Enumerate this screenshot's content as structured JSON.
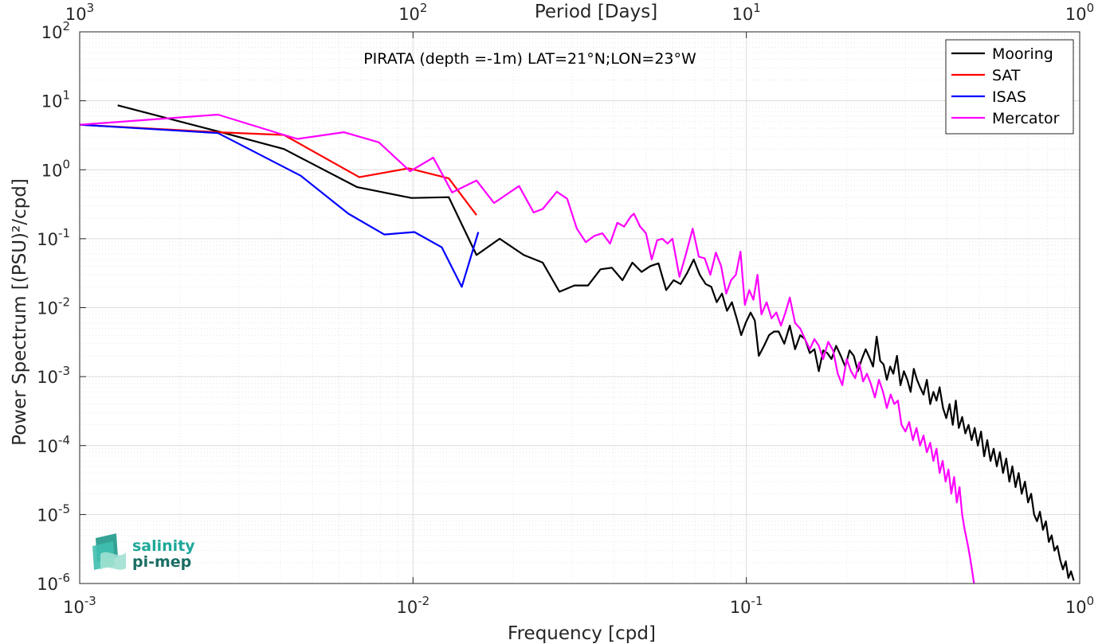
{
  "chart_data": {
    "type": "line",
    "title": "PIRATA (depth =-1m) LAT=21°N;LON=23°W",
    "xlabel": "Frequency [cpd]",
    "ylabel": "Power Spectrum [(PSU)²/cpd]",
    "x2label": "Period [Days]",
    "xscale": "log",
    "yscale": "log",
    "xlim": [
      0.001,
      1
    ],
    "ylim": [
      1e-06,
      100
    ],
    "grid": true,
    "legend_position": "top-right",
    "x_ticks": [
      {
        "value": 0.001,
        "base": "10",
        "exp": "-3"
      },
      {
        "value": 0.01,
        "base": "10",
        "exp": "-2"
      },
      {
        "value": 0.1,
        "base": "10",
        "exp": "-1"
      },
      {
        "value": 1,
        "base": "10",
        "exp": "0"
      }
    ],
    "x2_ticks": [
      {
        "value": 0.001,
        "base": "10",
        "exp": "3"
      },
      {
        "value": 0.01,
        "base": "10",
        "exp": "2"
      },
      {
        "value": 0.1,
        "base": "10",
        "exp": "1"
      },
      {
        "value": 1,
        "base": "10",
        "exp": "0"
      }
    ],
    "y_ticks": [
      {
        "value": 1e-06,
        "base": "10",
        "exp": "-6"
      },
      {
        "value": 1e-05,
        "base": "10",
        "exp": "-5"
      },
      {
        "value": 0.0001,
        "base": "10",
        "exp": "-4"
      },
      {
        "value": 0.001,
        "base": "10",
        "exp": "-3"
      },
      {
        "value": 0.01,
        "base": "10",
        "exp": "-2"
      },
      {
        "value": 0.1,
        "base": "10",
        "exp": "-1"
      },
      {
        "value": 1,
        "base": "10",
        "exp": "0"
      },
      {
        "value": 10,
        "base": "10",
        "exp": "1"
      },
      {
        "value": 100,
        "base": "10",
        "exp": "2"
      }
    ],
    "series": [
      {
        "name": "Mooring",
        "color": "#000000",
        "points": [
          [
            0.0013,
            8.6
          ],
          [
            0.0026,
            3.6
          ],
          [
            0.0041,
            2.0
          ],
          [
            0.0068,
            0.56
          ],
          [
            0.0099,
            0.39
          ],
          [
            0.0128,
            0.4
          ],
          [
            0.0155,
            0.058
          ],
          [
            0.0182,
            0.1
          ],
          [
            0.0215,
            0.058
          ],
          [
            0.0245,
            0.045
          ],
          [
            0.0275,
            0.017
          ],
          [
            0.0305,
            0.021
          ],
          [
            0.0335,
            0.021
          ],
          [
            0.0365,
            0.036
          ],
          [
            0.0395,
            0.038
          ],
          [
            0.0425,
            0.025
          ],
          [
            0.0455,
            0.045
          ],
          [
            0.0485,
            0.033
          ],
          [
            0.0515,
            0.04
          ],
          [
            0.0545,
            0.044
          ],
          [
            0.0575,
            0.018
          ],
          [
            0.0605,
            0.025
          ],
          [
            0.0635,
            0.022
          ],
          [
            0.0665,
            0.032
          ],
          [
            0.0695,
            0.05
          ],
          [
            0.0725,
            0.03
          ],
          [
            0.0755,
            0.022
          ],
          [
            0.0785,
            0.02
          ],
          [
            0.0815,
            0.012
          ],
          [
            0.0845,
            0.016
          ],
          [
            0.0875,
            0.009
          ],
          [
            0.0905,
            0.012
          ],
          [
            0.0935,
            0.007
          ],
          [
            0.0965,
            0.004
          ],
          [
            0.0995,
            0.006
          ],
          [
            0.103,
            0.0085
          ],
          [
            0.106,
            0.0065
          ],
          [
            0.109,
            0.002
          ],
          [
            0.113,
            0.0028
          ],
          [
            0.117,
            0.004
          ],
          [
            0.121,
            0.0045
          ],
          [
            0.125,
            0.0045
          ],
          [
            0.13,
            0.003
          ],
          [
            0.135,
            0.0055
          ],
          [
            0.14,
            0.0025
          ],
          [
            0.145,
            0.004
          ],
          [
            0.15,
            0.0035
          ],
          [
            0.155,
            0.0022
          ],
          [
            0.16,
            0.0025
          ],
          [
            0.165,
            0.0012
          ],
          [
            0.17,
            0.0024
          ],
          [
            0.175,
            0.0022
          ],
          [
            0.18,
            0.0018
          ],
          [
            0.186,
            0.0028
          ],
          [
            0.192,
            0.002
          ],
          [
            0.198,
            0.0014
          ],
          [
            0.204,
            0.0024
          ],
          [
            0.21,
            0.002
          ],
          [
            0.216,
            0.0012
          ],
          [
            0.222,
            0.0018
          ],
          [
            0.228,
            0.0025
          ],
          [
            0.234,
            0.0019
          ],
          [
            0.24,
            0.0014
          ],
          [
            0.246,
            0.0038
          ],
          [
            0.252,
            0.0017
          ],
          [
            0.258,
            0.0015
          ],
          [
            0.264,
            0.0009
          ],
          [
            0.27,
            0.0014
          ],
          [
            0.276,
            0.0011
          ],
          [
            0.283,
            0.002
          ],
          [
            0.29,
            0.00075
          ],
          [
            0.297,
            0.0012
          ],
          [
            0.304,
            0.0009
          ],
          [
            0.311,
            0.0006
          ],
          [
            0.318,
            0.0013
          ],
          [
            0.325,
            0.0009
          ],
          [
            0.332,
            0.0007
          ],
          [
            0.34,
            0.00055
          ],
          [
            0.348,
            0.0009
          ],
          [
            0.356,
            0.0004
          ],
          [
            0.364,
            0.0006
          ],
          [
            0.372,
            0.00045
          ],
          [
            0.38,
            0.0007
          ],
          [
            0.389,
            0.00035
          ],
          [
            0.398,
            0.00025
          ],
          [
            0.407,
            0.0004
          ],
          [
            0.416,
            0.0002
          ],
          [
            0.425,
            0.00045
          ],
          [
            0.434,
            0.00018
          ],
          [
            0.444,
            0.00026
          ],
          [
            0.454,
            0.00015
          ],
          [
            0.464,
            0.0002
          ],
          [
            0.474,
            0.00012
          ],
          [
            0.484,
            0.00018
          ],
          [
            0.495,
            0.0001
          ],
          [
            0.506,
            0.00016
          ],
          [
            0.517,
            7e-05
          ],
          [
            0.528,
            0.00012
          ],
          [
            0.54,
            6e-05
          ],
          [
            0.552,
            9e-05
          ],
          [
            0.564,
            5e-05
          ],
          [
            0.576,
            8e-05
          ],
          [
            0.589,
            4e-05
          ],
          [
            0.602,
            6.5e-05
          ],
          [
            0.615,
            3e-05
          ],
          [
            0.628,
            5e-05
          ],
          [
            0.642,
            2.5e-05
          ],
          [
            0.656,
            4e-05
          ],
          [
            0.67,
            2e-05
          ],
          [
            0.685,
            3e-05
          ],
          [
            0.7,
            1.5e-05
          ],
          [
            0.715,
            2e-05
          ],
          [
            0.73,
            1e-05
          ],
          [
            0.745,
            8e-06
          ],
          [
            0.76,
            1.1e-05
          ],
          [
            0.776,
            6e-06
          ],
          [
            0.792,
            8e-06
          ],
          [
            0.808,
            4e-06
          ],
          [
            0.824,
            5e-06
          ],
          [
            0.84,
            3e-06
          ],
          [
            0.857,
            3.5e-06
          ],
          [
            0.874,
            2.2e-06
          ],
          [
            0.891,
            1.6e-06
          ],
          [
            0.908,
            2.1e-06
          ],
          [
            0.925,
            1.2e-06
          ],
          [
            0.942,
            1.5e-06
          ],
          [
            0.96,
            1.1e-06
          ]
        ]
      },
      {
        "name": "SAT",
        "color": "#ff0000",
        "points": [
          [
            0.001,
            4.5
          ],
          [
            0.0026,
            3.5
          ],
          [
            0.0041,
            3.2
          ],
          [
            0.0069,
            0.78
          ],
          [
            0.0097,
            1.05
          ],
          [
            0.0128,
            0.75
          ],
          [
            0.0155,
            0.22
          ]
        ]
      },
      {
        "name": "ISAS",
        "color": "#0000ff",
        "points": [
          [
            0.001,
            4.5
          ],
          [
            0.0026,
            3.4
          ],
          [
            0.0046,
            0.82
          ],
          [
            0.0064,
            0.23
          ],
          [
            0.0082,
            0.115
          ],
          [
            0.0101,
            0.125
          ],
          [
            0.0122,
            0.075
          ],
          [
            0.014,
            0.02
          ],
          [
            0.0157,
            0.125
          ]
        ]
      },
      {
        "name": "Mercator",
        "color": "#ff00ff",
        "points": [
          [
            0.001,
            4.5
          ],
          [
            0.0026,
            6.3
          ],
          [
            0.0041,
            3.2
          ],
          [
            0.0045,
            2.8
          ],
          [
            0.0062,
            3.5
          ],
          [
            0.0079,
            2.5
          ],
          [
            0.0098,
            0.95
          ],
          [
            0.0115,
            1.5
          ],
          [
            0.0131,
            0.47
          ],
          [
            0.0155,
            0.7
          ],
          [
            0.0175,
            0.33
          ],
          [
            0.0208,
            0.58
          ],
          [
            0.023,
            0.24
          ],
          [
            0.0245,
            0.27
          ],
          [
            0.027,
            0.48
          ],
          [
            0.029,
            0.38
          ],
          [
            0.031,
            0.14
          ],
          [
            0.033,
            0.089
          ],
          [
            0.035,
            0.11
          ],
          [
            0.037,
            0.12
          ],
          [
            0.039,
            0.085
          ],
          [
            0.041,
            0.17
          ],
          [
            0.043,
            0.15
          ],
          [
            0.045,
            0.21
          ],
          [
            0.046,
            0.23
          ],
          [
            0.048,
            0.15
          ],
          [
            0.05,
            0.12
          ],
          [
            0.052,
            0.05
          ],
          [
            0.054,
            0.095
          ],
          [
            0.056,
            0.1
          ],
          [
            0.058,
            0.085
          ],
          [
            0.06,
            0.1
          ],
          [
            0.063,
            0.028
          ],
          [
            0.066,
            0.062
          ],
          [
            0.069,
            0.14
          ],
          [
            0.072,
            0.055
          ],
          [
            0.075,
            0.052
          ],
          [
            0.078,
            0.03
          ],
          [
            0.081,
            0.063
          ],
          [
            0.084,
            0.04
          ],
          [
            0.087,
            0.016
          ],
          [
            0.09,
            0.025
          ],
          [
            0.093,
            0.03
          ],
          [
            0.096,
            0.065
          ],
          [
            0.099,
            0.011
          ],
          [
            0.102,
            0.018
          ],
          [
            0.105,
            0.013
          ],
          [
            0.108,
            0.03
          ],
          [
            0.111,
            0.008
          ],
          [
            0.115,
            0.012
          ],
          [
            0.119,
            0.007
          ],
          [
            0.123,
            0.0085
          ],
          [
            0.127,
            0.0055
          ],
          [
            0.131,
            0.0085
          ],
          [
            0.135,
            0.014
          ],
          [
            0.14,
            0.006
          ],
          [
            0.145,
            0.005
          ],
          [
            0.15,
            0.0035
          ],
          [
            0.155,
            0.0025
          ],
          [
            0.16,
            0.0035
          ],
          [
            0.165,
            0.0028
          ],
          [
            0.17,
            0.0018
          ],
          [
            0.176,
            0.0032
          ],
          [
            0.182,
            0.0024
          ],
          [
            0.188,
            0.0011
          ],
          [
            0.194,
            0.00075
          ],
          [
            0.2,
            0.0018
          ],
          [
            0.206,
            0.0012
          ],
          [
            0.212,
            0.00095
          ],
          [
            0.218,
            0.0016
          ],
          [
            0.224,
            0.00085
          ],
          [
            0.23,
            0.0011
          ],
          [
            0.236,
            0.0008
          ],
          [
            0.243,
            0.0005
          ],
          [
            0.25,
            0.0009
          ],
          [
            0.257,
            0.0006
          ],
          [
            0.264,
            0.00035
          ],
          [
            0.271,
            0.00055
          ],
          [
            0.278,
            0.0004
          ],
          [
            0.285,
            0.00045
          ],
          [
            0.292,
            0.0002
          ],
          [
            0.3,
            0.00016
          ],
          [
            0.308,
            0.00022
          ],
          [
            0.316,
            0.00012
          ],
          [
            0.324,
            0.00018
          ],
          [
            0.332,
            0.0001
          ],
          [
            0.34,
            0.00014
          ],
          [
            0.348,
            8e-05
          ],
          [
            0.356,
            0.00011
          ],
          [
            0.364,
            6e-05
          ],
          [
            0.372,
            9e-05
          ],
          [
            0.38,
            4e-05
          ],
          [
            0.388,
            6e-05
          ],
          [
            0.396,
            3e-05
          ],
          [
            0.404,
            4.5e-05
          ],
          [
            0.412,
            2e-05
          ],
          [
            0.42,
            3.5e-05
          ],
          [
            0.428,
            1.5e-05
          ],
          [
            0.436,
            2.5e-05
          ],
          [
            0.444,
            1e-05
          ],
          [
            0.452,
            6e-06
          ],
          [
            0.46,
            4e-06
          ],
          [
            0.468,
            2.5e-06
          ],
          [
            0.476,
            1.5e-06
          ],
          [
            0.482,
            1e-06
          ]
        ]
      }
    ]
  },
  "logo": {
    "line1": "salinity",
    "line2": "pi-mep",
    "color": "#1fa89a"
  }
}
